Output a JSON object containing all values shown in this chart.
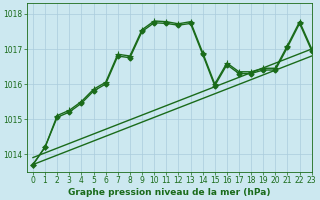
{
  "title": "Graphe pression niveau de la mer (hPa)",
  "background_color": "#cce8f0",
  "grid_color": "#aaccdd",
  "line_color": "#1a6b1a",
  "xlim": [
    -0.5,
    23
  ],
  "ylim": [
    1013.5,
    1018.3
  ],
  "yticks": [
    1014,
    1015,
    1016,
    1017,
    1018
  ],
  "xticks": [
    0,
    1,
    2,
    3,
    4,
    5,
    6,
    7,
    8,
    9,
    10,
    11,
    12,
    13,
    14,
    15,
    16,
    17,
    18,
    19,
    20,
    21,
    22,
    23
  ],
  "series": [
    {
      "x": [
        0,
        23
      ],
      "y": [
        1013.7,
        1016.8
      ],
      "linestyle": "-",
      "marker": null,
      "linewidth": 1.0
    },
    {
      "x": [
        0,
        23
      ],
      "y": [
        1013.9,
        1017.0
      ],
      "linestyle": "-",
      "marker": null,
      "linewidth": 1.0
    },
    {
      "x": [
        0,
        1,
        2,
        3,
        4,
        5,
        6,
        7,
        8,
        9,
        10,
        11,
        12,
        13,
        14,
        15,
        16,
        17,
        18,
        19,
        20,
        21,
        22,
        23
      ],
      "y": [
        1013.7,
        1014.2,
        1015.1,
        1015.25,
        1015.5,
        1015.85,
        1016.05,
        1016.85,
        1016.8,
        1017.55,
        1017.8,
        1017.78,
        1017.72,
        1017.78,
        1016.9,
        1016.0,
        1016.6,
        1016.35,
        1016.35,
        1016.45,
        1016.45,
        1017.1,
        1017.78,
        1017.0
      ],
      "linestyle": "-",
      "marker": "+",
      "markersize": 4.0,
      "linewidth": 1.0
    },
    {
      "x": [
        0,
        1,
        2,
        3,
        4,
        5,
        6,
        7,
        8,
        9,
        10,
        11,
        12,
        13,
        14,
        15,
        16,
        17,
        18,
        19,
        20,
        21,
        22,
        23
      ],
      "y": [
        1013.7,
        1014.2,
        1015.05,
        1015.2,
        1015.45,
        1015.8,
        1016.0,
        1016.8,
        1016.75,
        1017.5,
        1017.75,
        1017.73,
        1017.68,
        1017.73,
        1016.85,
        1015.95,
        1016.55,
        1016.3,
        1016.3,
        1016.4,
        1016.4,
        1017.05,
        1017.73,
        1016.95
      ],
      "linestyle": "-",
      "marker": "D",
      "markersize": 2.5,
      "linewidth": 1.0
    }
  ],
  "tick_fontsize": 5.5,
  "title_fontsize": 6.5
}
